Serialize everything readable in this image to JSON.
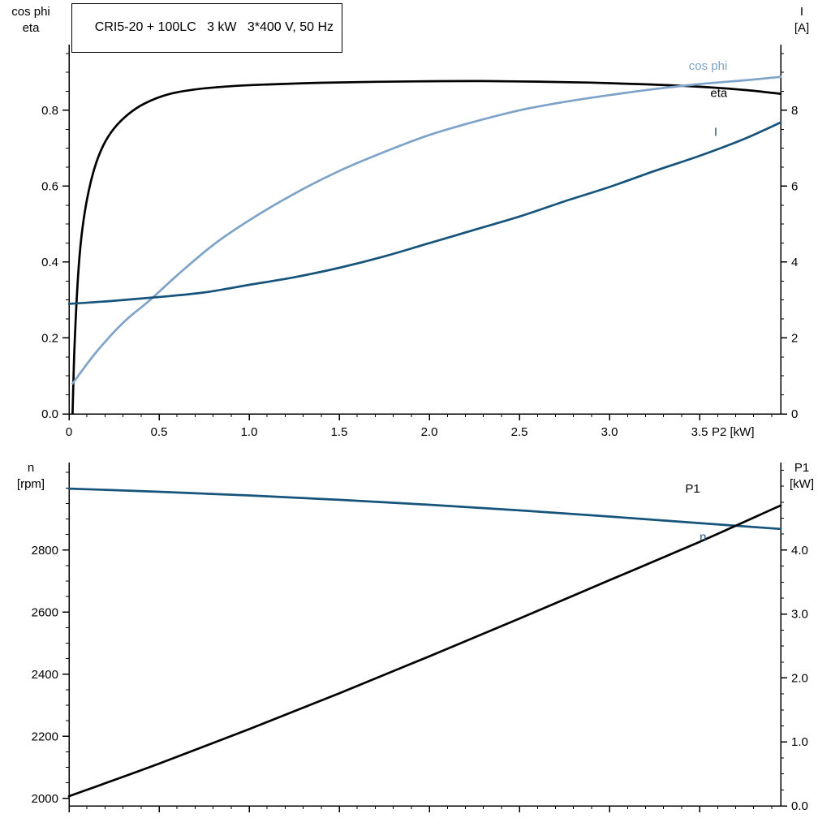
{
  "title_box": {
    "text": "CRI5-20 + 100LC   3 kW   3*400 V, 50 Hz"
  },
  "colors": {
    "black": "#000000",
    "dark_blue": "#17547c",
    "light_blue": "#7ea3c8",
    "axis": "#000000",
    "background": "#ffffff"
  },
  "chart_data": [
    {
      "type": "line",
      "title": "CRI5-20 + 100LC   3 kW   3*400 V, 50 Hz",
      "x_axis": {
        "label": "P2 [kW]",
        "min": 0,
        "max": 3.95,
        "major_ticks": [
          0,
          0.5,
          1,
          1.5,
          2,
          2.5,
          3,
          3.5
        ],
        "tick_labels": [
          "0",
          "0.5",
          "1.0",
          "1.5",
          "2.0",
          "2.5",
          "3.0",
          "3.5"
        ],
        "minor_step": 0.1,
        "show_tick_labels": true
      },
      "y_left": {
        "label_line1": "cos phi",
        "label_line2": "eta",
        "min": 0,
        "max": 0.973,
        "major_ticks": [
          0,
          0.2,
          0.4,
          0.6,
          0.8
        ],
        "tick_labels": [
          "0.0",
          "0.2",
          "0.4",
          "0.6",
          "0.8"
        ],
        "minor_step": 0.05
      },
      "y_right": {
        "label_line1": "I",
        "label_line2": "[A]",
        "min": 0,
        "max": 9.73,
        "major_ticks": [
          0,
          2,
          4,
          6,
          8
        ],
        "tick_labels": [
          "0",
          "2",
          "4",
          "6",
          "8"
        ],
        "minor_step": 0.5
      },
      "series": [
        {
          "name": "eta",
          "axis": "left",
          "color": "black",
          "label": "eta",
          "label_pos": [
            3.56,
            0.835
          ],
          "points": [
            [
              0.02,
              0.0
            ],
            [
              0.03,
              0.17
            ],
            [
              0.05,
              0.36
            ],
            [
              0.07,
              0.47
            ],
            [
              0.1,
              0.565
            ],
            [
              0.14,
              0.645
            ],
            [
              0.19,
              0.707
            ],
            [
              0.25,
              0.752
            ],
            [
              0.33,
              0.79
            ],
            [
              0.42,
              0.818
            ],
            [
              0.55,
              0.842
            ],
            [
              0.7,
              0.855
            ],
            [
              0.9,
              0.8635
            ],
            [
              1.1,
              0.868
            ],
            [
              1.4,
              0.8725
            ],
            [
              1.7,
              0.875
            ],
            [
              2.0,
              0.8765
            ],
            [
              2.3,
              0.877
            ],
            [
              2.6,
              0.8755
            ],
            [
              2.9,
              0.873
            ],
            [
              3.2,
              0.8685
            ],
            [
              3.5,
              0.862
            ],
            [
              3.75,
              0.8535
            ],
            [
              3.95,
              0.8435
            ]
          ]
        },
        {
          "name": "cos_phi",
          "axis": "left",
          "color": "light_blue",
          "label": "cos phi",
          "label_pos": [
            3.44,
            0.907
          ],
          "points": [
            [
              0.02,
              0.08
            ],
            [
              0.15,
              0.162
            ],
            [
              0.3,
              0.24
            ],
            [
              0.45,
              0.3
            ],
            [
              0.6,
              0.365
            ],
            [
              0.8,
              0.445
            ],
            [
              1.0,
              0.51
            ],
            [
              1.25,
              0.58
            ],
            [
              1.5,
              0.64
            ],
            [
              1.75,
              0.69
            ],
            [
              2.0,
              0.735
            ],
            [
              2.25,
              0.77
            ],
            [
              2.5,
              0.8
            ],
            [
              2.75,
              0.822
            ],
            [
              3.0,
              0.84
            ],
            [
              3.25,
              0.856
            ],
            [
              3.5,
              0.869
            ],
            [
              3.75,
              0.879
            ],
            [
              3.95,
              0.888
            ]
          ]
        },
        {
          "name": "current",
          "axis": "right",
          "color": "dark_blue",
          "label": "I",
          "label_pos": [
            3.58,
            7.32
          ],
          "points": [
            [
              0,
              2.9
            ],
            [
              0.25,
              2.98
            ],
            [
              0.5,
              3.08
            ],
            [
              0.75,
              3.2
            ],
            [
              1.0,
              3.4
            ],
            [
              1.25,
              3.6
            ],
            [
              1.5,
              3.85
            ],
            [
              1.75,
              4.15
            ],
            [
              2.0,
              4.5
            ],
            [
              2.25,
              4.85
            ],
            [
              2.5,
              5.2
            ],
            [
              2.75,
              5.6
            ],
            [
              3.0,
              5.98
            ],
            [
              3.25,
              6.4
            ],
            [
              3.5,
              6.8
            ],
            [
              3.75,
              7.25
            ],
            [
              3.95,
              7.68
            ]
          ]
        }
      ]
    },
    {
      "type": "line",
      "x_axis": {
        "label": "",
        "min": 0,
        "max": 3.95,
        "major_ticks": [
          0,
          0.5,
          1,
          1.5,
          2,
          2.5,
          3,
          3.5
        ],
        "tick_labels": [],
        "minor_step": 0.1,
        "show_tick_labels": false
      },
      "y_left": {
        "label_line1": "n",
        "label_line2": "[rpm]",
        "min": 1976,
        "max": 3082,
        "major_ticks": [
          2000,
          2200,
          2400,
          2600,
          2800
        ],
        "tick_labels": [
          "2000",
          "2200",
          "2400",
          "2600",
          "2800"
        ],
        "minor_step": 50
      },
      "y_right": {
        "label_line1": "P1",
        "label_line2": "[kW]",
        "min": 0,
        "max": 5.37,
        "major_ticks": [
          0,
          1,
          2,
          3,
          4
        ],
        "tick_labels": [
          "0.0",
          "1.0",
          "2.0",
          "3.0",
          "4.0"
        ],
        "minor_step": 0.25
      },
      "series": [
        {
          "name": "speed",
          "axis": "left",
          "color": "dark_blue",
          "label": "n",
          "label_pos": [
            3.5,
            2830
          ],
          "points": [
            [
              0,
              2998
            ],
            [
              0.5,
              2988
            ],
            [
              1.0,
              2976
            ],
            [
              1.5,
              2962
            ],
            [
              2.0,
              2946
            ],
            [
              2.5,
              2928
            ],
            [
              3.0,
              2908
            ],
            [
              3.5,
              2887
            ],
            [
              3.95,
              2868
            ]
          ]
        },
        {
          "name": "input_power",
          "axis": "right",
          "color": "black",
          "label": "P1",
          "label_pos": [
            3.42,
            4.9
          ],
          "points": [
            [
              0,
              0.15
            ],
            [
              0.5,
              0.66
            ],
            [
              1.0,
              1.2
            ],
            [
              1.5,
              1.76
            ],
            [
              2.0,
              2.34
            ],
            [
              2.5,
              2.93
            ],
            [
              3.0,
              3.53
            ],
            [
              3.5,
              4.13
            ],
            [
              3.95,
              4.7
            ]
          ]
        }
      ]
    }
  ]
}
